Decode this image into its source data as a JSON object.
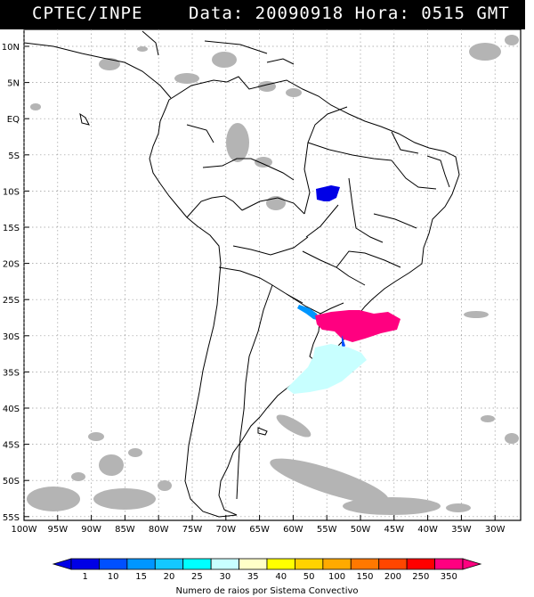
{
  "header": {
    "source": "CPTEC/INPE",
    "datetime": "Data: 20090918 Hora: 0515 GMT"
  },
  "map": {
    "lat_labels": [
      "10N",
      "5N",
      "EQ",
      "5S",
      "10S",
      "15S",
      "20S",
      "25S",
      "30S",
      "35S",
      "40S",
      "45S",
      "50S",
      "55S"
    ],
    "lon_labels": [
      "100W",
      "95W",
      "90W",
      "85W",
      "80W",
      "75W",
      "70W",
      "65W",
      "60W",
      "55W",
      "50W",
      "45W",
      "40W",
      "35W",
      "30W"
    ]
  },
  "legend": {
    "title": "Numero de raios por Sistema Convectivo",
    "ticks": [
      "1",
      "10",
      "15",
      "20",
      "25",
      "30",
      "35",
      "40",
      "50",
      "100",
      "150",
      "200",
      "250",
      "350"
    ],
    "colors": [
      "#0000e6",
      "#0050ff",
      "#0096ff",
      "#14c8ff",
      "#00ffff",
      "#c8ffff",
      "#ffffc8",
      "#ffff00",
      "#ffd200",
      "#ffaa00",
      "#ff7800",
      "#ff4600",
      "#ff0000",
      "#ff0080"
    ]
  }
}
